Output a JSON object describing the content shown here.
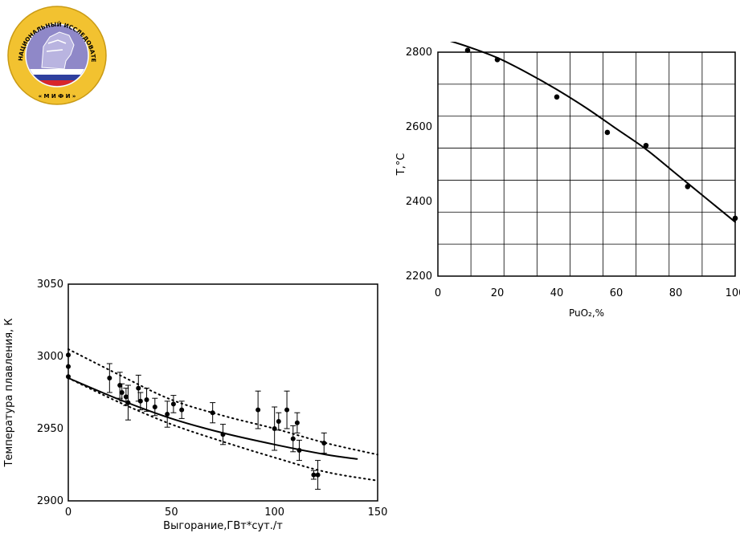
{
  "logo": {
    "ring_text": "НАЦИОНАЛЬНЫЙ ИССЛЕДОВАТЕЛЬСКИЙ ЯДЕРНЫЙ УНИВЕРСИТЕТ",
    "bottom_text": "« М И Ф И »",
    "colors": {
      "ring": "#f2c230",
      "disc": "#8f88c8",
      "flag_white": "#ffffff",
      "flag_blue": "#2f3f9e",
      "flag_red": "#d8262a"
    }
  },
  "chart_data": [
    {
      "type": "scatter",
      "xlabel": "PuO₂,%",
      "ylabel": "T,°C",
      "xlim": [
        0,
        100
      ],
      "ylim": [
        2200,
        2800
      ],
      "x_ticks": [
        0,
        20,
        40,
        60,
        80,
        100
      ],
      "y_ticks": [
        2200,
        2400,
        2600,
        2800
      ],
      "grid": true,
      "series": [
        {
          "kind": "points",
          "x": [
            10,
            20,
            40,
            57,
            70,
            84,
            100
          ],
          "y": [
            2805,
            2780,
            2680,
            2585,
            2550,
            2440,
            2355
          ]
        },
        {
          "kind": "fit_line",
          "x": [
            0,
            10,
            20,
            30,
            40,
            50,
            60,
            70,
            80,
            90,
            100
          ],
          "y": [
            2840,
            2815,
            2785,
            2745,
            2700,
            2650,
            2595,
            2540,
            2475,
            2410,
            2345
          ]
        }
      ]
    },
    {
      "type": "scatter",
      "xlabel": "Выгорание,ГВт*сут./т",
      "ylabel": "Температура плавления, К",
      "xlim": [
        0,
        150
      ],
      "ylim": [
        2900,
        3050
      ],
      "x_ticks": [
        0,
        50,
        100,
        150
      ],
      "y_ticks": [
        2900,
        2950,
        3000,
        3050
      ],
      "grid": false,
      "series": [
        {
          "kind": "points_with_error",
          "x": [
            0,
            0,
            0,
            20,
            25,
            26,
            28,
            29,
            34,
            35,
            38,
            42,
            48,
            51,
            55,
            70,
            75,
            92,
            100,
            102,
            106,
            109,
            111,
            112,
            119,
            121,
            124
          ],
          "y": [
            3001,
            2993,
            2986,
            2985,
            2980,
            2975,
            2972,
            2968,
            2978,
            2969,
            2970,
            2965,
            2960,
            2967,
            2963,
            2961,
            2946,
            2963,
            2950,
            2955,
            2963,
            2943,
            2954,
            2935,
            2918,
            2918,
            2940
          ],
          "err": [
            0,
            0,
            0,
            10,
            9,
            6,
            6,
            12,
            9,
            6,
            8,
            6,
            9,
            6,
            6,
            7,
            7,
            13,
            15,
            6,
            13,
            9,
            7,
            7,
            3,
            10,
            7
          ]
        },
        {
          "kind": "fit_line",
          "x": [
            0,
            25,
            50,
            75,
            100,
            125,
            140
          ],
          "y": [
            2985,
            2970,
            2957,
            2947,
            2939,
            2932,
            2929
          ]
        },
        {
          "kind": "upper_bound",
          "x": [
            0,
            25,
            50,
            75,
            100,
            125,
            150
          ],
          "y": [
            3005,
            2987,
            2970,
            2959,
            2950,
            2940,
            2932
          ]
        },
        {
          "kind": "lower_bound",
          "x": [
            0,
            25,
            50,
            75,
            100,
            125,
            150
          ],
          "y": [
            2985,
            2968,
            2953,
            2941,
            2930,
            2920,
            2914
          ]
        }
      ]
    }
  ]
}
